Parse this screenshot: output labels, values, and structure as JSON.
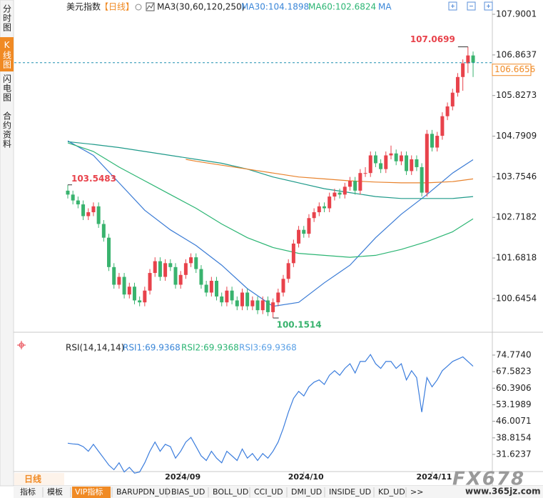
{
  "sidebar": [
    "分时图",
    "K线图",
    "闪电图",
    "合约资料"
  ],
  "header": {
    "instrument": "美元指数",
    "period": "【日线】",
    "ma_title": "MA3(30,60,120,250)",
    "ma_legend": [
      {
        "text": "MA30:104.1898",
        "color": "#3a86d8"
      },
      {
        "text": "MA60:102.6824",
        "color": "#2bb573"
      },
      {
        "text": "MA",
        "color": "#3a86d8"
      }
    ]
  },
  "chart_data": [
    {
      "type": "candlestick",
      "up_color": "#e8424b",
      "down_color": "#39b36e",
      "xlim": [
        -10.43,
        82.75
      ],
      "ylim": [
        99.824,
        108.1738
      ],
      "yticks": [
        107.9001,
        106.8637,
        105.8273,
        104.7909,
        103.7546,
        102.7182,
        101.6818,
        100.6454
      ],
      "open": [
        103.4,
        103.3,
        103.15,
        103.05,
        102.75,
        102.85,
        103.0,
        102.55,
        102.2,
        101.45,
        101.0,
        101.2,
        100.75,
        100.95,
        100.6,
        100.55,
        100.85,
        101.3,
        101.6,
        101.2,
        101.55,
        101.45,
        101.0,
        101.25,
        101.55,
        101.7,
        101.4,
        101.0,
        100.8,
        101.1,
        100.7,
        100.55,
        100.85,
        100.6,
        100.45,
        100.8,
        100.45,
        100.6,
        100.35,
        100.6,
        100.3,
        100.55,
        100.8,
        101.15,
        101.55,
        102.05,
        102.4,
        102.3,
        102.7,
        102.85,
        103.0,
        102.95,
        103.25,
        103.35,
        103.3,
        103.5,
        103.65,
        103.4,
        103.85,
        103.85,
        104.3,
        104.1,
        103.95,
        104.3,
        104.35,
        104.15,
        104.3,
        103.9,
        104.2,
        104.0,
        103.35,
        104.85,
        104.5,
        104.8,
        105.3,
        105.55,
        105.9,
        106.3,
        106.65,
        106.85
      ],
      "high": [
        103.5483,
        103.4,
        103.25,
        103.15,
        102.95,
        103.1,
        103.1,
        102.65,
        102.3,
        101.55,
        101.3,
        101.3,
        101.05,
        101.05,
        100.7,
        100.95,
        101.4,
        101.7,
        101.7,
        101.65,
        101.65,
        101.55,
        101.35,
        101.65,
        101.8,
        101.8,
        101.5,
        101.1,
        101.2,
        101.2,
        100.8,
        100.95,
        100.95,
        100.7,
        100.9,
        100.9,
        100.7,
        100.7,
        100.7,
        100.7,
        100.65,
        100.9,
        101.25,
        101.65,
        102.15,
        102.5,
        102.5,
        102.8,
        102.95,
        103.1,
        103.1,
        103.35,
        103.45,
        103.45,
        103.6,
        103.75,
        103.75,
        103.95,
        104.0,
        104.4,
        104.4,
        104.2,
        104.4,
        104.55,
        104.45,
        104.4,
        104.4,
        104.3,
        104.3,
        104.1,
        104.95,
        104.95,
        104.9,
        105.4,
        105.65,
        106.0,
        106.4,
        106.75,
        107.0699,
        106.95
      ],
      "low": [
        103.2,
        103.05,
        102.95,
        102.65,
        102.65,
        102.75,
        102.45,
        102.1,
        101.35,
        100.9,
        100.9,
        100.65,
        100.65,
        100.5,
        100.45,
        100.45,
        100.75,
        101.2,
        101.1,
        101.1,
        101.35,
        100.9,
        100.9,
        101.15,
        101.45,
        101.3,
        100.9,
        100.7,
        100.7,
        100.6,
        100.45,
        100.45,
        100.5,
        100.35,
        100.35,
        100.35,
        100.35,
        100.25,
        100.25,
        100.2,
        100.1514,
        100.45,
        100.7,
        101.05,
        101.45,
        101.95,
        102.2,
        102.2,
        102.6,
        102.75,
        102.85,
        102.85,
        103.15,
        103.2,
        103.2,
        103.4,
        103.3,
        103.3,
        103.75,
        103.75,
        104.0,
        103.85,
        103.85,
        104.2,
        104.05,
        104.05,
        103.8,
        103.8,
        103.9,
        103.25,
        103.25,
        104.4,
        104.4,
        104.7,
        105.2,
        105.45,
        105.8,
        105.95,
        106.4,
        106.3
      ],
      "close": [
        103.3,
        103.15,
        103.05,
        102.75,
        102.85,
        103.0,
        102.55,
        102.2,
        101.45,
        101.0,
        101.2,
        100.75,
        100.95,
        100.6,
        100.55,
        100.85,
        101.3,
        101.6,
        101.2,
        101.55,
        101.45,
        101.0,
        101.25,
        101.55,
        101.7,
        101.4,
        101.0,
        100.8,
        101.1,
        100.7,
        100.55,
        100.85,
        100.6,
        100.45,
        100.8,
        100.45,
        100.6,
        100.35,
        100.6,
        100.3,
        100.55,
        100.8,
        101.15,
        101.55,
        102.05,
        102.4,
        102.3,
        102.7,
        102.85,
        103.0,
        102.95,
        103.25,
        103.35,
        103.3,
        103.5,
        103.65,
        103.4,
        103.85,
        103.85,
        104.3,
        104.1,
        103.95,
        104.3,
        104.35,
        104.15,
        104.3,
        103.9,
        104.2,
        104.0,
        103.35,
        104.85,
        104.5,
        104.8,
        105.3,
        105.55,
        105.9,
        106.3,
        106.65,
        106.85,
        106.6656
      ],
      "series": [
        {
          "color": "#3a7bd5",
          "x": [
            0,
            5,
            10,
            15,
            20,
            25,
            30,
            35,
            40,
            45,
            50,
            55,
            60,
            65,
            70,
            75,
            79
          ],
          "values": [
            104.67,
            104.3,
            103.6,
            102.9,
            102.4,
            102.0,
            101.5,
            100.9,
            100.45,
            100.55,
            101.05,
            101.5,
            102.2,
            102.8,
            103.3,
            103.85,
            104.1898
          ]
        },
        {
          "color": "#2bb573",
          "x": [
            0,
            5,
            10,
            15,
            20,
            25,
            30,
            35,
            40,
            45,
            50,
            55,
            60,
            65,
            70,
            75,
            79
          ],
          "values": [
            104.62,
            104.4,
            104.0,
            103.65,
            103.3,
            102.95,
            102.55,
            102.2,
            101.95,
            101.8,
            101.75,
            101.7,
            101.75,
            101.9,
            102.1,
            102.35,
            102.6824
          ]
        },
        {
          "color": "#1f9a8a",
          "x": [
            0,
            5,
            10,
            15,
            20,
            25,
            30,
            35,
            40,
            45,
            50,
            55,
            60,
            65,
            70,
            75,
            79
          ],
          "values": [
            104.65,
            104.58,
            104.5,
            104.4,
            104.3,
            104.2,
            104.1,
            103.95,
            103.75,
            103.6,
            103.45,
            103.35,
            103.25,
            103.2,
            103.2,
            103.2,
            103.25
          ]
        },
        {
          "color": "#e8822c",
          "x": [
            23,
            25,
            30,
            35,
            40,
            45,
            50,
            55,
            60,
            65,
            70,
            75,
            79
          ],
          "values": [
            104.2,
            104.15,
            104.05,
            103.95,
            103.85,
            103.75,
            103.7,
            103.65,
            103.62,
            103.6,
            103.6,
            103.63,
            103.7
          ]
        }
      ],
      "last_color": "#f08a24"
    },
    {
      "type": "line",
      "xlim": [
        -10.43,
        82.75
      ],
      "ylim": [
        23.56,
        80.66
      ],
      "yticks": [
        {
          "value": 74.774,
          "label": "74.7740"
        },
        67.5823,
        60.3906,
        53.1989,
        46.0071,
        38.8154,
        31.6237
      ],
      "legend": [
        {
          "text": "RSI(14,14,14)",
          "color": "#222222"
        },
        {
          "text": "RSI1:69.9368",
          "color": "#3a86d8"
        },
        {
          "text": "RSI2:69.9368",
          "color": "#2bb573"
        },
        {
          "text": "RSI3:69.9368",
          "color": "#5aa0e6"
        }
      ],
      "series": [
        {
          "color": "#3b7ddd",
          "values": [
            36.5,
            36.2,
            36,
            35,
            33,
            36,
            33,
            30,
            27,
            25,
            28,
            24,
            26,
            23.5,
            24,
            28,
            33,
            37,
            33,
            36,
            35,
            30,
            33,
            37,
            39,
            35,
            31,
            29,
            33,
            30,
            28,
            33,
            31,
            29,
            34,
            30,
            32,
            29,
            32,
            30,
            33,
            37,
            43,
            50,
            56,
            59,
            57,
            61,
            63,
            64,
            62,
            66,
            68,
            66,
            69,
            71,
            67,
            72,
            72,
            75,
            71,
            69,
            72,
            72,
            69,
            71,
            64,
            68,
            65,
            50,
            65,
            61,
            64,
            68,
            70,
            72,
            73,
            74,
            72,
            69.9368
          ]
        }
      ],
      "xticks": [
        {
          "value": 22,
          "label": "2024/09"
        },
        {
          "value": 46,
          "label": "2024/10"
        },
        {
          "value": 71,
          "label": "2024/11"
        }
      ]
    }
  ],
  "footer": {
    "period_label": "日线",
    "toolbar": [
      "指标",
      "模板",
      "VIP指标",
      "BARUPDN_UD",
      "BIAS_UD",
      "BOLL_UD",
      "CCI_UD",
      "DMI_UD",
      "INSIDE_UD",
      "KD_UD",
      ">>"
    ],
    "watermark": "FX678",
    "site": "www.365jz.com"
  }
}
